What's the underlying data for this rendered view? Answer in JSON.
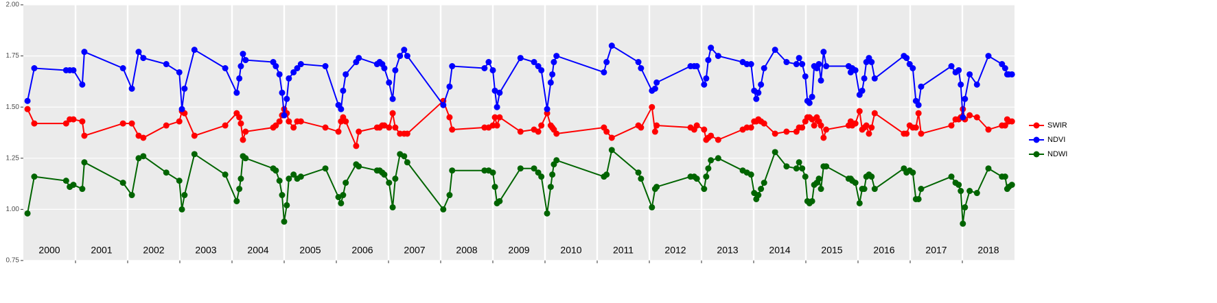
{
  "chart_data": {
    "type": "line",
    "x": [
      2000.08,
      2000.21,
      2000.82,
      2000.89,
      2000.96,
      2001.13,
      2001.17,
      2001.91,
      2002.08,
      2002.21,
      2002.3,
      2002.74,
      2002.99,
      2003.04,
      2003.09,
      2003.28,
      2003.87,
      2004.09,
      2004.14,
      2004.17,
      2004.21,
      2004.26,
      2004.79,
      2004.84,
      2004.91,
      2004.96,
      2005.0,
      2005.05,
      2005.09,
      2005.18,
      2005.25,
      2005.32,
      2005.79,
      2006.04,
      2006.09,
      2006.13,
      2006.18,
      2006.38,
      2006.43,
      2006.78,
      2006.83,
      2006.88,
      2006.92,
      2007.01,
      2007.08,
      2007.13,
      2007.22,
      2007.3,
      2007.36,
      2008.05,
      2008.17,
      2008.22,
      2008.84,
      2008.92,
      2009.0,
      2009.04,
      2009.08,
      2009.13,
      2009.53,
      2009.79,
      2009.87,
      2009.93,
      2010.04,
      2010.11,
      2010.14,
      2010.17,
      2010.22,
      2011.13,
      2011.18,
      2011.28,
      2011.79,
      2011.84,
      2012.05,
      2012.11,
      2012.14,
      2012.79,
      2012.86,
      2012.91,
      2013.05,
      2013.09,
      2013.13,
      2013.18,
      2013.32,
      2013.79,
      2013.87,
      2013.95,
      2014.01,
      2014.05,
      2014.09,
      2014.14,
      2014.2,
      2014.41,
      2014.63,
      2014.82,
      2014.87,
      2014.93,
      2014.99,
      2015.03,
      2015.07,
      2015.12,
      2015.16,
      2015.21,
      2015.25,
      2015.29,
      2015.34,
      2015.39,
      2015.82,
      2015.86,
      2015.89,
      2015.95,
      2016.03,
      2016.08,
      2016.12,
      2016.16,
      2016.21,
      2016.26,
      2016.32,
      2016.88,
      2016.93,
      2016.99,
      2017.05,
      2017.11,
      2017.16,
      2017.21,
      2017.79,
      2017.87,
      2017.93,
      2017.97,
      2018.01,
      2018.05,
      2018.14,
      2018.28,
      2018.5,
      2018.76,
      2018.82,
      2018.86,
      2018.89,
      2018.95
    ],
    "series": [
      {
        "name": "SWIR",
        "color": "#ff0000",
        "values": [
          1.49,
          1.42,
          1.42,
          1.44,
          1.44,
          1.43,
          1.36,
          1.42,
          1.42,
          1.36,
          1.35,
          1.41,
          1.43,
          1.48,
          1.47,
          1.36,
          1.41,
          1.47,
          1.45,
          1.42,
          1.34,
          1.38,
          1.4,
          1.41,
          1.43,
          1.46,
          1.49,
          1.47,
          1.43,
          1.4,
          1.43,
          1.43,
          1.4,
          1.38,
          1.43,
          1.45,
          1.43,
          1.31,
          1.38,
          1.4,
          1.4,
          1.41,
          1.41,
          1.4,
          1.47,
          1.4,
          1.37,
          1.37,
          1.37,
          1.53,
          1.45,
          1.39,
          1.4,
          1.4,
          1.41,
          1.45,
          1.41,
          1.45,
          1.38,
          1.39,
          1.38,
          1.41,
          1.47,
          1.41,
          1.4,
          1.39,
          1.37,
          1.4,
          1.38,
          1.35,
          1.41,
          1.4,
          1.5,
          1.38,
          1.41,
          1.4,
          1.39,
          1.41,
          1.39,
          1.34,
          1.35,
          1.36,
          1.34,
          1.39,
          1.4,
          1.4,
          1.43,
          1.43,
          1.44,
          1.43,
          1.42,
          1.37,
          1.38,
          1.38,
          1.4,
          1.4,
          1.43,
          1.45,
          1.45,
          1.44,
          1.41,
          1.45,
          1.43,
          1.41,
          1.35,
          1.39,
          1.41,
          1.43,
          1.41,
          1.42,
          1.48,
          1.39,
          1.4,
          1.41,
          1.37,
          1.4,
          1.47,
          1.37,
          1.37,
          1.41,
          1.4,
          1.4,
          1.47,
          1.37,
          1.41,
          1.44,
          1.44,
          1.45,
          1.49,
          1.44,
          1.46,
          1.45,
          1.39,
          1.41,
          1.41,
          1.44,
          1.43,
          1.43
        ]
      },
      {
        "name": "NDVI",
        "color": "#0000ff",
        "values": [
          1.53,
          1.69,
          1.68,
          1.68,
          1.68,
          1.61,
          1.77,
          1.69,
          1.59,
          1.77,
          1.74,
          1.71,
          1.67,
          1.49,
          1.59,
          1.78,
          1.69,
          1.57,
          1.64,
          1.7,
          1.76,
          1.73,
          1.72,
          1.7,
          1.66,
          1.57,
          1.46,
          1.54,
          1.64,
          1.67,
          1.69,
          1.71,
          1.7,
          1.51,
          1.49,
          1.58,
          1.66,
          1.72,
          1.74,
          1.71,
          1.72,
          1.71,
          1.69,
          1.62,
          1.54,
          1.68,
          1.75,
          1.78,
          1.75,
          1.51,
          1.6,
          1.7,
          1.69,
          1.72,
          1.68,
          1.58,
          1.5,
          1.57,
          1.74,
          1.72,
          1.7,
          1.68,
          1.49,
          1.62,
          1.66,
          1.72,
          1.75,
          1.67,
          1.72,
          1.8,
          1.72,
          1.69,
          1.58,
          1.59,
          1.62,
          1.7,
          1.7,
          1.7,
          1.61,
          1.64,
          1.73,
          1.79,
          1.75,
          1.72,
          1.71,
          1.71,
          1.58,
          1.54,
          1.57,
          1.61,
          1.69,
          1.78,
          1.72,
          1.71,
          1.74,
          1.71,
          1.65,
          1.53,
          1.52,
          1.55,
          1.7,
          1.69,
          1.71,
          1.63,
          1.77,
          1.7,
          1.7,
          1.67,
          1.69,
          1.68,
          1.56,
          1.58,
          1.64,
          1.72,
          1.74,
          1.72,
          1.64,
          1.75,
          1.74,
          1.71,
          1.69,
          1.53,
          1.51,
          1.6,
          1.7,
          1.67,
          1.68,
          1.61,
          1.45,
          1.54,
          1.66,
          1.61,
          1.75,
          1.71,
          1.69,
          1.66,
          1.66,
          1.66
        ]
      },
      {
        "name": "NDWI",
        "color": "#006400",
        "values": [
          0.98,
          1.16,
          1.14,
          1.11,
          1.12,
          1.1,
          1.23,
          1.13,
          1.07,
          1.25,
          1.26,
          1.18,
          1.14,
          1.0,
          1.07,
          1.27,
          1.17,
          1.04,
          1.1,
          1.15,
          1.26,
          1.25,
          1.2,
          1.19,
          1.14,
          1.07,
          0.94,
          1.02,
          1.15,
          1.17,
          1.15,
          1.16,
          1.2,
          1.06,
          1.03,
          1.07,
          1.13,
          1.22,
          1.21,
          1.19,
          1.19,
          1.18,
          1.17,
          1.13,
          1.01,
          1.15,
          1.27,
          1.26,
          1.23,
          1.0,
          1.07,
          1.19,
          1.19,
          1.19,
          1.18,
          1.11,
          1.03,
          1.04,
          1.2,
          1.2,
          1.18,
          1.16,
          0.98,
          1.11,
          1.17,
          1.22,
          1.24,
          1.16,
          1.17,
          1.29,
          1.18,
          1.15,
          1.01,
          1.1,
          1.11,
          1.16,
          1.16,
          1.15,
          1.1,
          1.16,
          1.2,
          1.24,
          1.25,
          1.19,
          1.18,
          1.17,
          1.08,
          1.05,
          1.07,
          1.1,
          1.13,
          1.28,
          1.21,
          1.2,
          1.23,
          1.2,
          1.16,
          1.04,
          1.03,
          1.04,
          1.12,
          1.13,
          1.15,
          1.1,
          1.21,
          1.21,
          1.15,
          1.15,
          1.14,
          1.13,
          1.03,
          1.1,
          1.1,
          1.16,
          1.17,
          1.16,
          1.1,
          1.2,
          1.18,
          1.19,
          1.18,
          1.05,
          1.05,
          1.1,
          1.16,
          1.13,
          1.12,
          1.09,
          0.93,
          1.01,
          1.09,
          1.08,
          1.2,
          1.16,
          1.16,
          1.1,
          1.11,
          1.12
        ]
      }
    ],
    "xlim": [
      2000,
      2019
    ],
    "xticks": [
      2001,
      2002,
      2003,
      2004,
      2005,
      2006,
      2007,
      2008,
      2009,
      2010,
      2011,
      2012,
      2013,
      2014,
      2015,
      2016,
      2017,
      2018
    ],
    "year_labels": [
      "2000",
      "2001",
      "2002",
      "2003",
      "2004",
      "2005",
      "2006",
      "2007",
      "2008",
      "2009",
      "2010",
      "2011",
      "2012",
      "2013",
      "2014",
      "2015",
      "2016",
      "2017",
      "2018"
    ],
    "ylim": [
      0.75,
      2
    ],
    "yticks": [
      0.75,
      {
        "value": 1,
        "label": "1.00"
      },
      1.25,
      {
        "value": 1.5,
        "label": "1.50"
      },
      1.75,
      {
        "value": 2,
        "label": "2.00"
      }
    ],
    "grid": true,
    "legend": "right"
  }
}
